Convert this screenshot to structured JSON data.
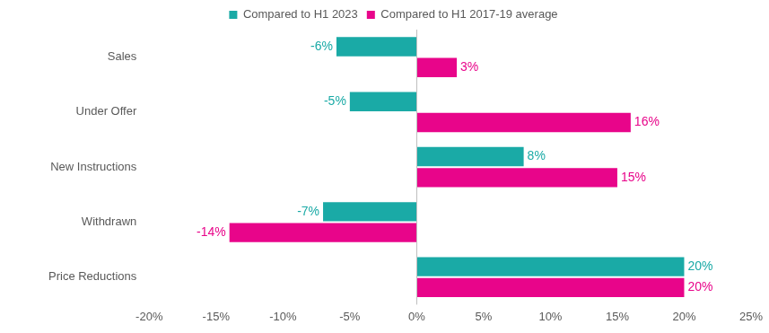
{
  "chart_data": {
    "type": "bar",
    "orientation": "horizontal",
    "categories": [
      "Sales",
      "Under Offer",
      "New Instructions",
      "Withdrawn",
      "Price Reductions"
    ],
    "series": [
      {
        "name": "Compared to H1 2023",
        "color": "#1aaaa6",
        "values": [
          -6,
          -5,
          8,
          -7,
          20
        ],
        "value_labels": [
          "-6%",
          "-5%",
          "8%",
          "-7%",
          "20%"
        ]
      },
      {
        "name": "Compared to H1 2017-19 average",
        "color": "#e8058a",
        "values": [
          3,
          16,
          15,
          -14,
          20
        ],
        "value_labels": [
          "3%",
          "16%",
          "15%",
          "-14%",
          "20%"
        ]
      }
    ],
    "xlim": [
      -20,
      25
    ],
    "xticks": [
      {
        "value": -20,
        "label": "-20%"
      },
      {
        "value": -15,
        "label": "-15%"
      },
      {
        "value": -10,
        "label": "-10%"
      },
      {
        "value": -5,
        "label": "-5%"
      },
      {
        "value": 0,
        "label": "0%"
      },
      {
        "value": 5,
        "label": "5%"
      },
      {
        "value": 10,
        "label": "10%"
      },
      {
        "value": 15,
        "label": "15%"
      },
      {
        "value": 20,
        "label": "20%"
      },
      {
        "value": 25,
        "label": "25%"
      }
    ],
    "grid": false,
    "legend": "top",
    "data_labels": true
  }
}
